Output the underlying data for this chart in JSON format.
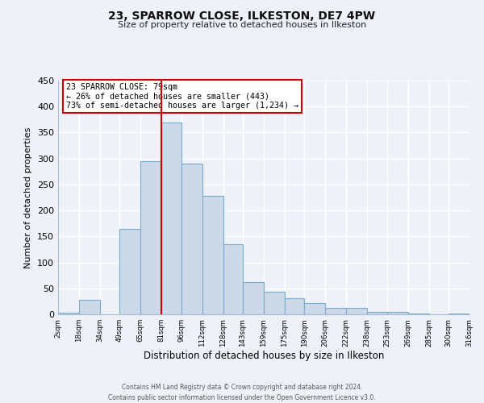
{
  "title": "23, SPARROW CLOSE, ILKESTON, DE7 4PW",
  "subtitle": "Size of property relative to detached houses in Ilkeston",
  "xlabel": "Distribution of detached houses by size in Ilkeston",
  "ylabel": "Number of detached properties",
  "bar_color": "#ccd9e8",
  "bar_edge_color": "#7aaad0",
  "background_color": "#eef2f8",
  "grid_color": "#ffffff",
  "vline_value": 81,
  "vline_color": "#cc0000",
  "annotation_title": "23 SPARROW CLOSE: 79sqm",
  "annotation_line1": "← 26% of detached houses are smaller (443)",
  "annotation_line2": "73% of semi-detached houses are larger (1,234) →",
  "annotation_box_color": "white",
  "annotation_box_edge": "#cc0000",
  "footer_line1": "Contains HM Land Registry data © Crown copyright and database right 2024.",
  "footer_line2": "Contains public sector information licensed under the Open Government Licence v3.0.",
  "bin_edges": [
    2,
    18,
    34,
    49,
    65,
    81,
    96,
    112,
    128,
    143,
    159,
    175,
    190,
    206,
    222,
    238,
    253,
    269,
    285,
    300,
    316
  ],
  "bin_counts": [
    3,
    28,
    0,
    165,
    295,
    370,
    290,
    228,
    135,
    62,
    43,
    31,
    22,
    12,
    12,
    5,
    4,
    1,
    0,
    2
  ],
  "ylim": [
    0,
    450
  ],
  "yticks": [
    0,
    50,
    100,
    150,
    200,
    250,
    300,
    350,
    400,
    450
  ],
  "tick_labels": [
    "2sqm",
    "18sqm",
    "34sqm",
    "49sqm",
    "65sqm",
    "81sqm",
    "96sqm",
    "112sqm",
    "128sqm",
    "143sqm",
    "159sqm",
    "175sqm",
    "190sqm",
    "206sqm",
    "222sqm",
    "238sqm",
    "253sqm",
    "269sqm",
    "285sqm",
    "300sqm",
    "316sqm"
  ]
}
